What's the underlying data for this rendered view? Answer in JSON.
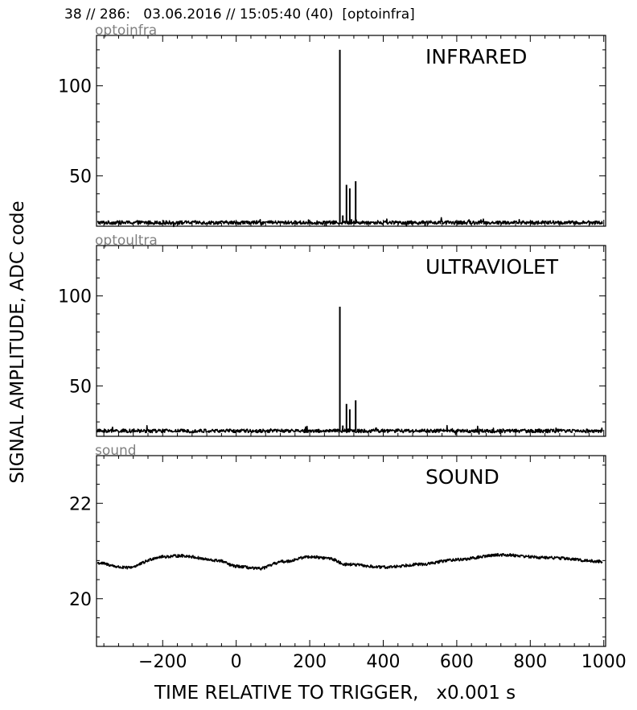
{
  "header": {
    "title": "38 // 286:   03.06.2016 // 15:05:40 (40)  [optoinfra]"
  },
  "chart_data": {
    "type": "line",
    "xlabel": "TIME RELATIVE TO TRIGGER,   x0.001 s",
    "ylabel": "SIGNAL AMPLITUDE,  ADC code",
    "xlim": [
      -380,
      1005
    ],
    "xticks": [
      -200,
      0,
      200,
      400,
      600,
      800,
      1000
    ],
    "xtick_labels": [
      "−200",
      "0",
      "200",
      "400",
      "600",
      "800",
      "1000"
    ],
    "grid": false,
    "panels": [
      {
        "name": "optoinfra",
        "title": "INFRARED",
        "ylim": [
          22,
          128
        ],
        "yticks": [
          50,
          100
        ],
        "yticks_minor_step": 10,
        "baseline": 24,
        "noise": 1.0,
        "spikes": [
          {
            "x": 282,
            "y": 120
          },
          {
            "x": 300,
            "y": 45
          },
          {
            "x": 309,
            "y": 43
          },
          {
            "x": 325,
            "y": 47
          },
          {
            "x": 290,
            "y": 28
          }
        ]
      },
      {
        "name": "optoultra",
        "title": "ULTRAVIOLET",
        "ylim": [
          22,
          128
        ],
        "yticks": [
          50,
          100
        ],
        "yticks_minor_step": 10,
        "baseline": 25,
        "noise": 1.0,
        "spikes": [
          {
            "x": 282,
            "y": 94
          },
          {
            "x": 300,
            "y": 40
          },
          {
            "x": 309,
            "y": 37
          },
          {
            "x": 325,
            "y": 42
          },
          {
            "x": 290,
            "y": 28
          }
        ]
      },
      {
        "name": "sound",
        "title": "SOUND",
        "ylim": [
          19,
          23
        ],
        "yticks": [
          20,
          22
        ],
        "yticks_minor_step": 0.4,
        "wave": [
          {
            "x": -380,
            "y": 20.75
          },
          {
            "x": -300,
            "y": 20.65
          },
          {
            "x": -200,
            "y": 20.88
          },
          {
            "x": -150,
            "y": 20.9
          },
          {
            "x": -50,
            "y": 20.8
          },
          {
            "x": 0,
            "y": 20.68
          },
          {
            "x": 60,
            "y": 20.63
          },
          {
            "x": 130,
            "y": 20.78
          },
          {
            "x": 200,
            "y": 20.88
          },
          {
            "x": 250,
            "y": 20.85
          },
          {
            "x": 300,
            "y": 20.72
          },
          {
            "x": 400,
            "y": 20.66
          },
          {
            "x": 500,
            "y": 20.72
          },
          {
            "x": 600,
            "y": 20.82
          },
          {
            "x": 720,
            "y": 20.92
          },
          {
            "x": 850,
            "y": 20.86
          },
          {
            "x": 1000,
            "y": 20.78
          }
        ],
        "noise": 0.03
      }
    ]
  }
}
